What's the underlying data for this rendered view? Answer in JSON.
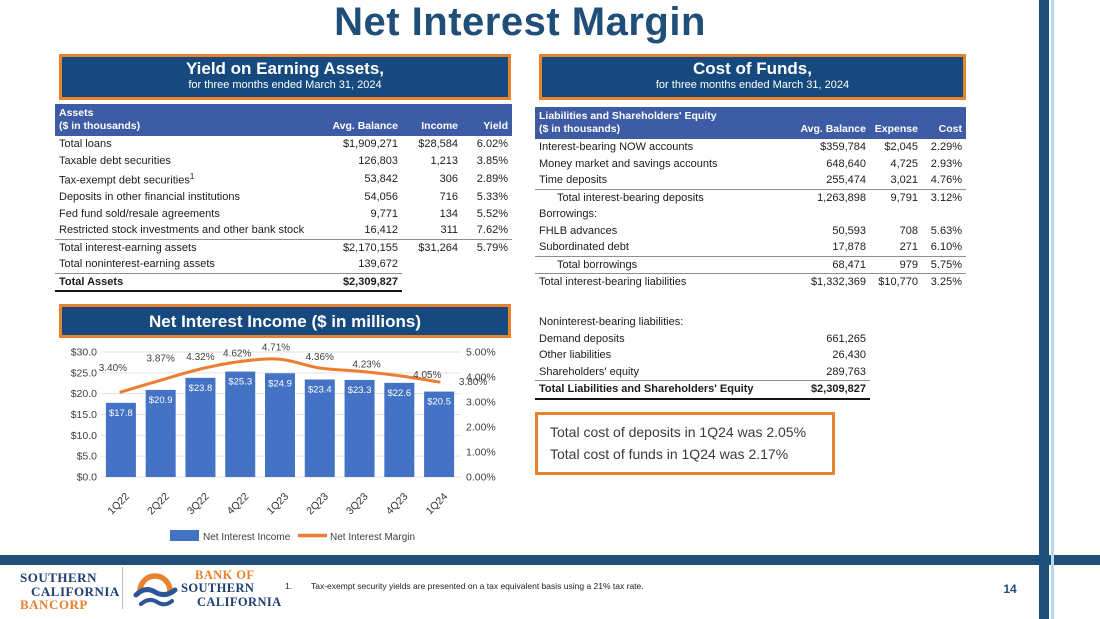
{
  "slide": {
    "title": "Net Interest Margin"
  },
  "colors": {
    "navy": "#1F4E79",
    "banner_navy": "#164A7E",
    "orange": "#E8822E",
    "header_blue": "#3D5CA5",
    "bar_blue": "#4472C4",
    "line_orange": "#ED7D31",
    "gridline": "#E2E2E2",
    "light_blue": "#BDD7EE"
  },
  "yield_table": {
    "banner_title": "Yield on Earning Assets,",
    "banner_subtitle": "for three months ended March 31, 2024",
    "header": {
      "line1": "Assets",
      "line2": "($ in thousands)",
      "cols": [
        "Avg. Balance",
        "Income",
        "Yield"
      ]
    },
    "rows": [
      {
        "label": "Total loans",
        "balance": "$1,909,271",
        "income": "$28,584",
        "yield": "6.02%"
      },
      {
        "label": "Taxable debt securities",
        "balance": "126,803",
        "income": "1,213",
        "yield": "3.85%"
      },
      {
        "label": "Tax-exempt debt securities",
        "sup": "1",
        "balance": "53,842",
        "income": "306",
        "yield": "2.89%"
      },
      {
        "label": "Deposits in other financial institutions",
        "balance": "54,056",
        "income": "716",
        "yield": "5.33%"
      },
      {
        "label": "Fed fund sold/resale agreements",
        "balance": "9,771",
        "income": "134",
        "yield": "5.52%"
      },
      {
        "label": "Restricted stock investments and other bank stock",
        "balance": "16,412",
        "income": "311",
        "yield": "7.62%",
        "rule": "full"
      },
      {
        "label": "Total interest-earning assets",
        "balance": "$2,170,155",
        "income": "$31,264",
        "yield": "5.79%"
      },
      {
        "label": "Total noninterest-earning assets",
        "balance": "139,672",
        "rule": "two"
      },
      {
        "label": "Total  Assets",
        "balance": "$2,309,827",
        "bold": true,
        "final": true
      }
    ]
  },
  "cost_table": {
    "banner_title": "Cost of Funds,",
    "banner_subtitle": "for three months ended March 31, 2024",
    "header": {
      "line1": "Liabilities and Shareholders' Equity",
      "line2": "($ in thousands)",
      "cols": [
        "Avg. Balance",
        "Expense",
        "Cost"
      ]
    },
    "rows": [
      {
        "label": "Interest-bearing NOW accounts",
        "balance": "$359,784",
        "expense": "$2,045",
        "cost": "2.29%"
      },
      {
        "label": "Money market and savings accounts",
        "balance": "648,640",
        "expense": "4,725",
        "cost": "2.93%"
      },
      {
        "label": "Time deposits",
        "balance": "255,474",
        "expense": "3,021",
        "cost": "4.76%",
        "rule": "full"
      },
      {
        "label": "Total interest-bearing deposits",
        "indent": true,
        "balance": "1,263,898",
        "expense": "9,791",
        "cost": "3.12%"
      },
      {
        "label": "Borrowings:"
      },
      {
        "label": "FHLB advances",
        "balance": "50,593",
        "expense": "708",
        "cost": "5.63%"
      },
      {
        "label": "Subordinated debt",
        "balance": "17,878",
        "expense": "271",
        "cost": "6.10%",
        "rule": "full"
      },
      {
        "label": "Total borrowings",
        "indent": true,
        "balance": "68,471",
        "expense": "979",
        "cost": "5.75%",
        "rule": "full"
      },
      {
        "label": "Total interest-bearing liabilities",
        "balance": "$1,332,369",
        "expense": "$10,770",
        "cost": "3.25%"
      }
    ],
    "noninterest_rows": [
      {
        "label": "Noninterest-bearing liabilities:"
      },
      {
        "label": "Demand deposits",
        "balance": "661,265"
      },
      {
        "label": "Other liabilities",
        "balance": "26,430"
      },
      {
        "label": "Shareholders' equity",
        "balance": "289,763",
        "rule": "two"
      },
      {
        "label": "Total Liabilities and Shareholders' Equity",
        "balance": "$2,309,827",
        "bold": true,
        "final": true
      }
    ]
  },
  "callout": {
    "line1": "Total cost of deposits in 1Q24 was 2.05%",
    "line2": "Total cost of funds in 1Q24 was 2.17%"
  },
  "chart_data": {
    "type": "bar",
    "combo": "bar+line",
    "title": "Net Interest Income ($ in millions)",
    "categories": [
      "1Q22",
      "2Q22",
      "3Q22",
      "4Q22",
      "1Q23",
      "2Q23",
      "3Q23",
      "4Q23",
      "1Q24"
    ],
    "series": [
      {
        "name": "Net Interest Income",
        "type": "bar",
        "axis": "left",
        "values": [
          17.8,
          20.9,
          23.8,
          25.3,
          24.9,
          23.4,
          23.3,
          22.6,
          20.5
        ],
        "labels": [
          "$17.8",
          "$20.9",
          "$23.8",
          "$25.3",
          "$24.9",
          "$23.4",
          "$23.3",
          "$22.6",
          "$20.5"
        ]
      },
      {
        "name": "Net Interest Margin",
        "type": "line",
        "axis": "right",
        "values": [
          3.4,
          3.87,
          4.32,
          4.62,
          4.71,
          4.36,
          4.23,
          4.05,
          3.8
        ],
        "labels": [
          "3.40%",
          "3.87%",
          "4.32%",
          "4.62%",
          "4.71%",
          "4.36%",
          "4.23%",
          "4.05%",
          "3.80%"
        ]
      }
    ],
    "left_axis": {
      "min": 0,
      "max": 30,
      "ticks": [
        "$30.0",
        "$25.0",
        "$20.0",
        "$15.0",
        "$10.0",
        "$5.0",
        "$0.0"
      ]
    },
    "right_axis": {
      "min": 0,
      "max": 5,
      "ticks": [
        "5.00%",
        "4.00%",
        "3.00%",
        "2.00%",
        "1.00%",
        "0.00%"
      ]
    },
    "legend": [
      "Net Interest Income",
      "Net Interest Margin"
    ],
    "grid": true,
    "legend_position": "bottom"
  },
  "footer": {
    "footnote_number": "1.",
    "footnote_text": "Tax-exempt security yields are presented on a tax equivalent basis using a 21% tax rate.",
    "page_number": "14",
    "bancorp_lines": [
      "SOUTHERN",
      "CALIFORNIA",
      "BANCORP"
    ],
    "bank_lines": [
      "BANK OF",
      "SOUTHERN",
      "CALIFORNIA"
    ]
  }
}
